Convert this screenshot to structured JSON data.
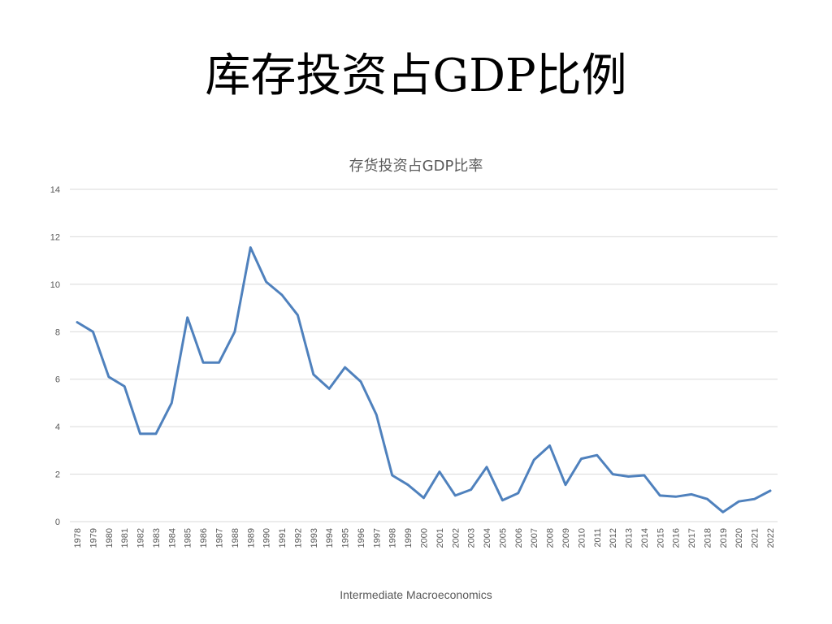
{
  "slide": {
    "title": "库存投资占GDP比例",
    "footer": "Intermediate Macroeconomics"
  },
  "style": {
    "line_color": "#4F81BD",
    "grid_color": "#D9D9D9",
    "text_color": "#595959"
  },
  "chart_data": {
    "type": "line",
    "title": "存货投资占GDP比率",
    "xlabel": "",
    "ylabel": "",
    "ylim": [
      0,
      14
    ],
    "yticks": [
      "0",
      "2",
      "4",
      "6",
      "8",
      "10",
      "12",
      "14"
    ],
    "grid": true,
    "categories": [
      "1978",
      "1979",
      "1980",
      "1981",
      "1982",
      "1983",
      "1984",
      "1985",
      "1986",
      "1987",
      "1988",
      "1989",
      "1990",
      "1991",
      "1992",
      "1993",
      "1994",
      "1995",
      "1996",
      "1997",
      "1998",
      "1999",
      "2000",
      "2001",
      "2002",
      "2003",
      "2004",
      "2005",
      "2006",
      "2007",
      "2008",
      "2009",
      "2010",
      "2011",
      "2012",
      "2013",
      "2014",
      "2015",
      "2016",
      "2017",
      "2018",
      "2019",
      "2020",
      "2021",
      "2022"
    ],
    "series": [
      {
        "values": [
          8.4,
          8.0,
          6.1,
          5.7,
          3.7,
          3.7,
          5.0,
          8.6,
          6.7,
          6.7,
          8.0,
          11.55,
          10.1,
          9.55,
          8.7,
          6.2,
          5.6,
          6.5,
          5.9,
          4.5,
          1.95,
          1.55,
          1.0,
          2.1,
          1.1,
          1.35,
          2.3,
          0.9,
          1.2,
          2.6,
          3.2,
          1.55,
          2.65,
          2.8,
          2.0,
          1.9,
          1.95,
          1.1,
          1.05,
          1.15,
          0.95,
          0.4,
          0.85,
          0.95,
          1.3
        ]
      }
    ]
  }
}
